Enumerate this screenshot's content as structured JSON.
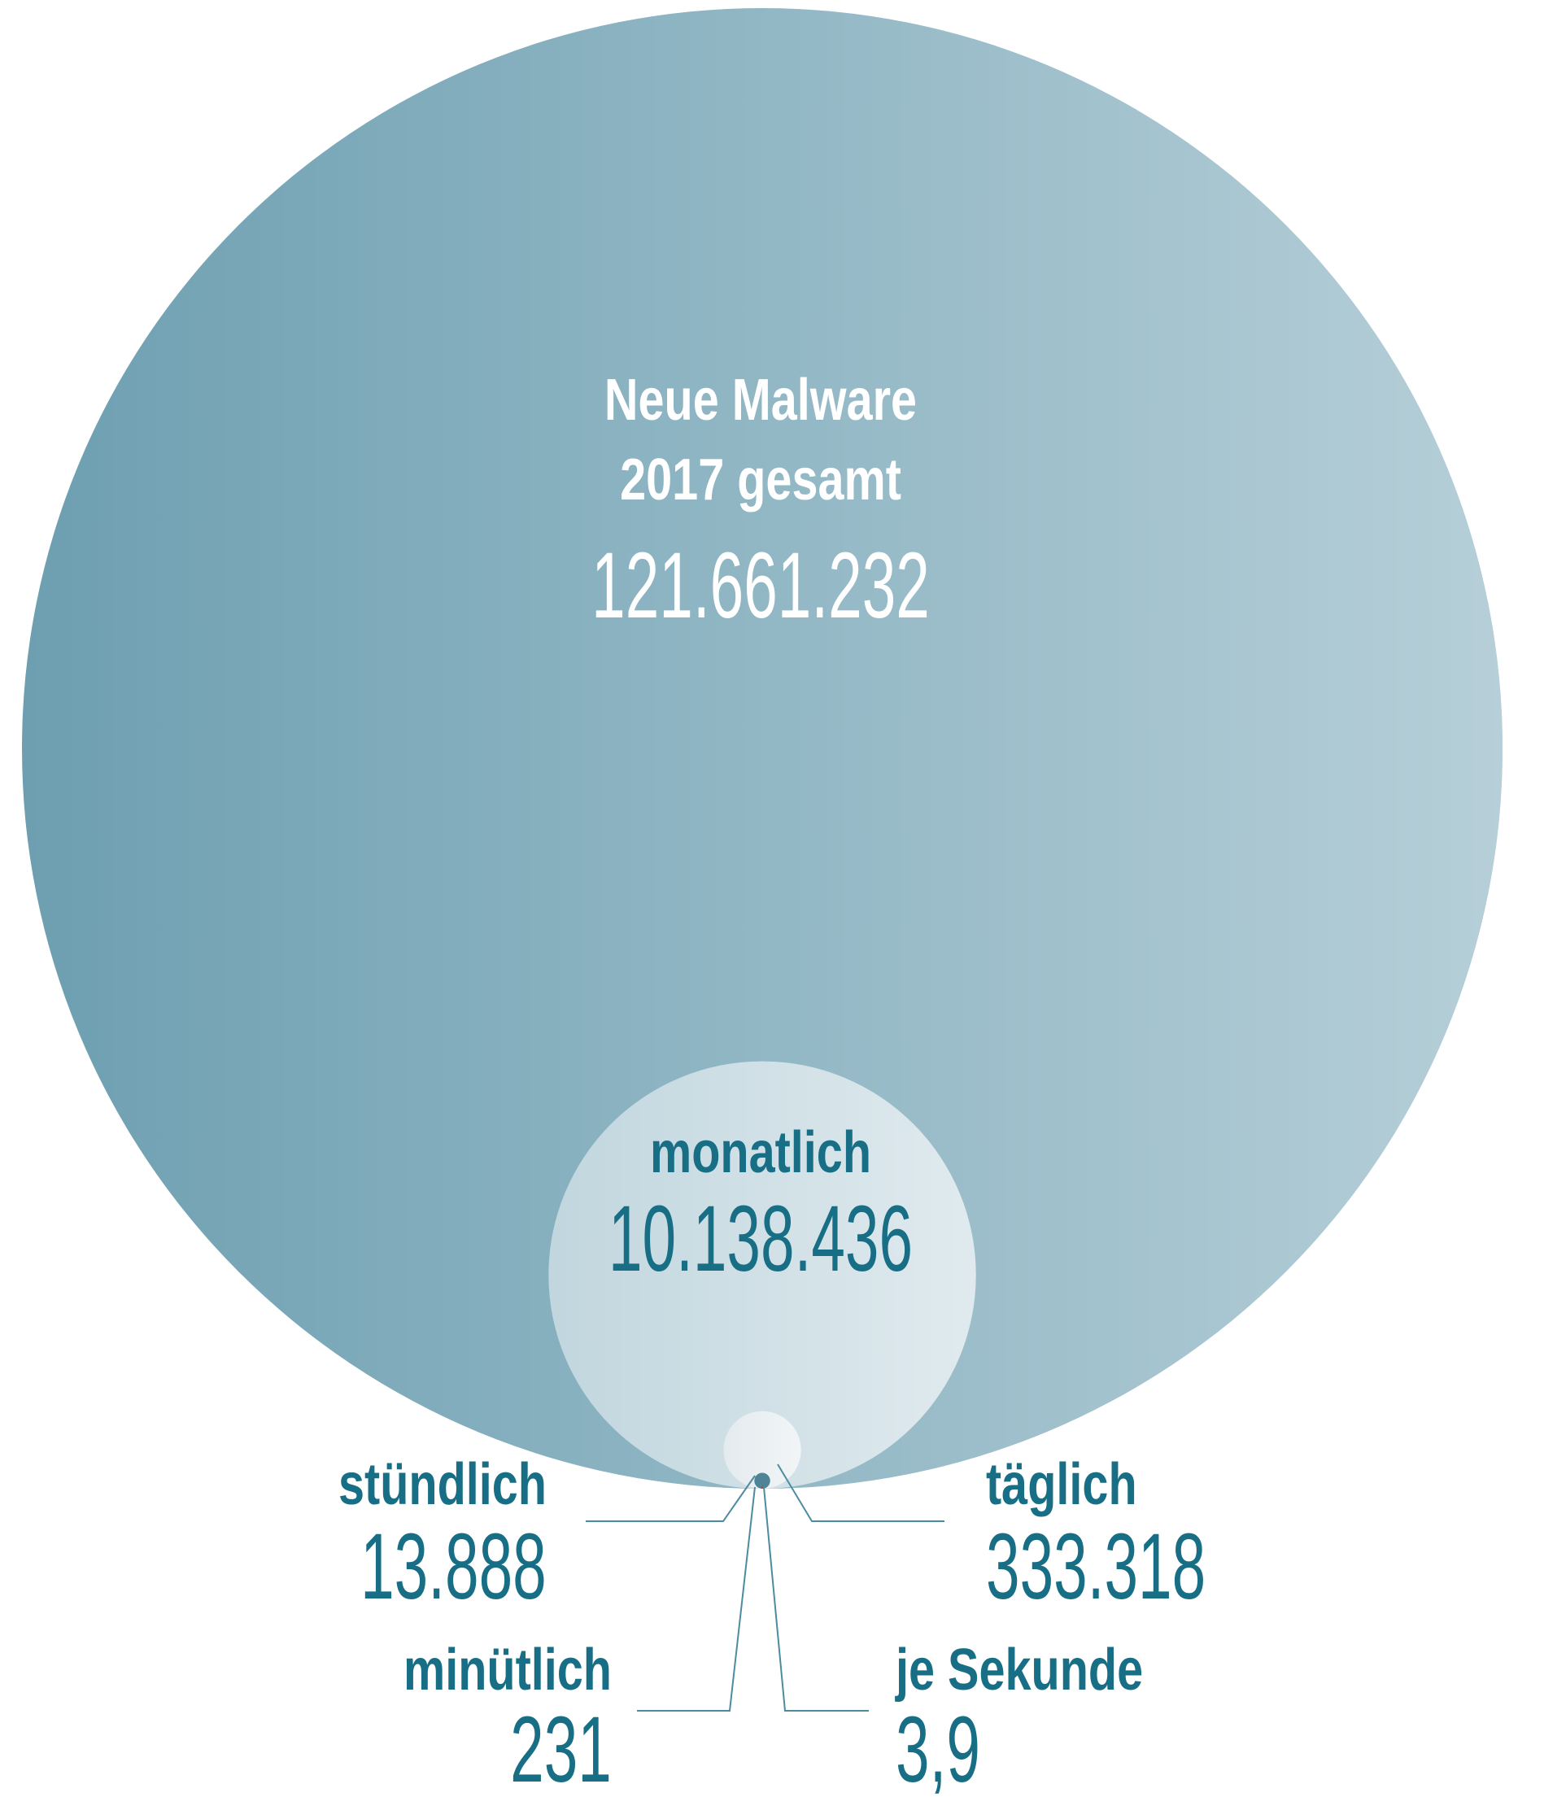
{
  "chart_data": {
    "type": "bubble",
    "categories": [
      "Neue Malware 2017 gesamt",
      "monatlich",
      "täglich",
      "stündlich",
      "minütlich",
      "je Sekunde"
    ],
    "values": [
      121661232,
      10138436,
      333318,
      13888,
      231,
      3.9
    ],
    "value_labels": [
      "121.661.232",
      "10.138.436",
      "333.318",
      "13.888",
      "231",
      "3,9"
    ],
    "colors": [
      "#6d9fb1",
      "#c1d6de",
      "#e4ebee",
      "#4e8398",
      "#c0392b",
      "#8b1a1a"
    ]
  }
}
